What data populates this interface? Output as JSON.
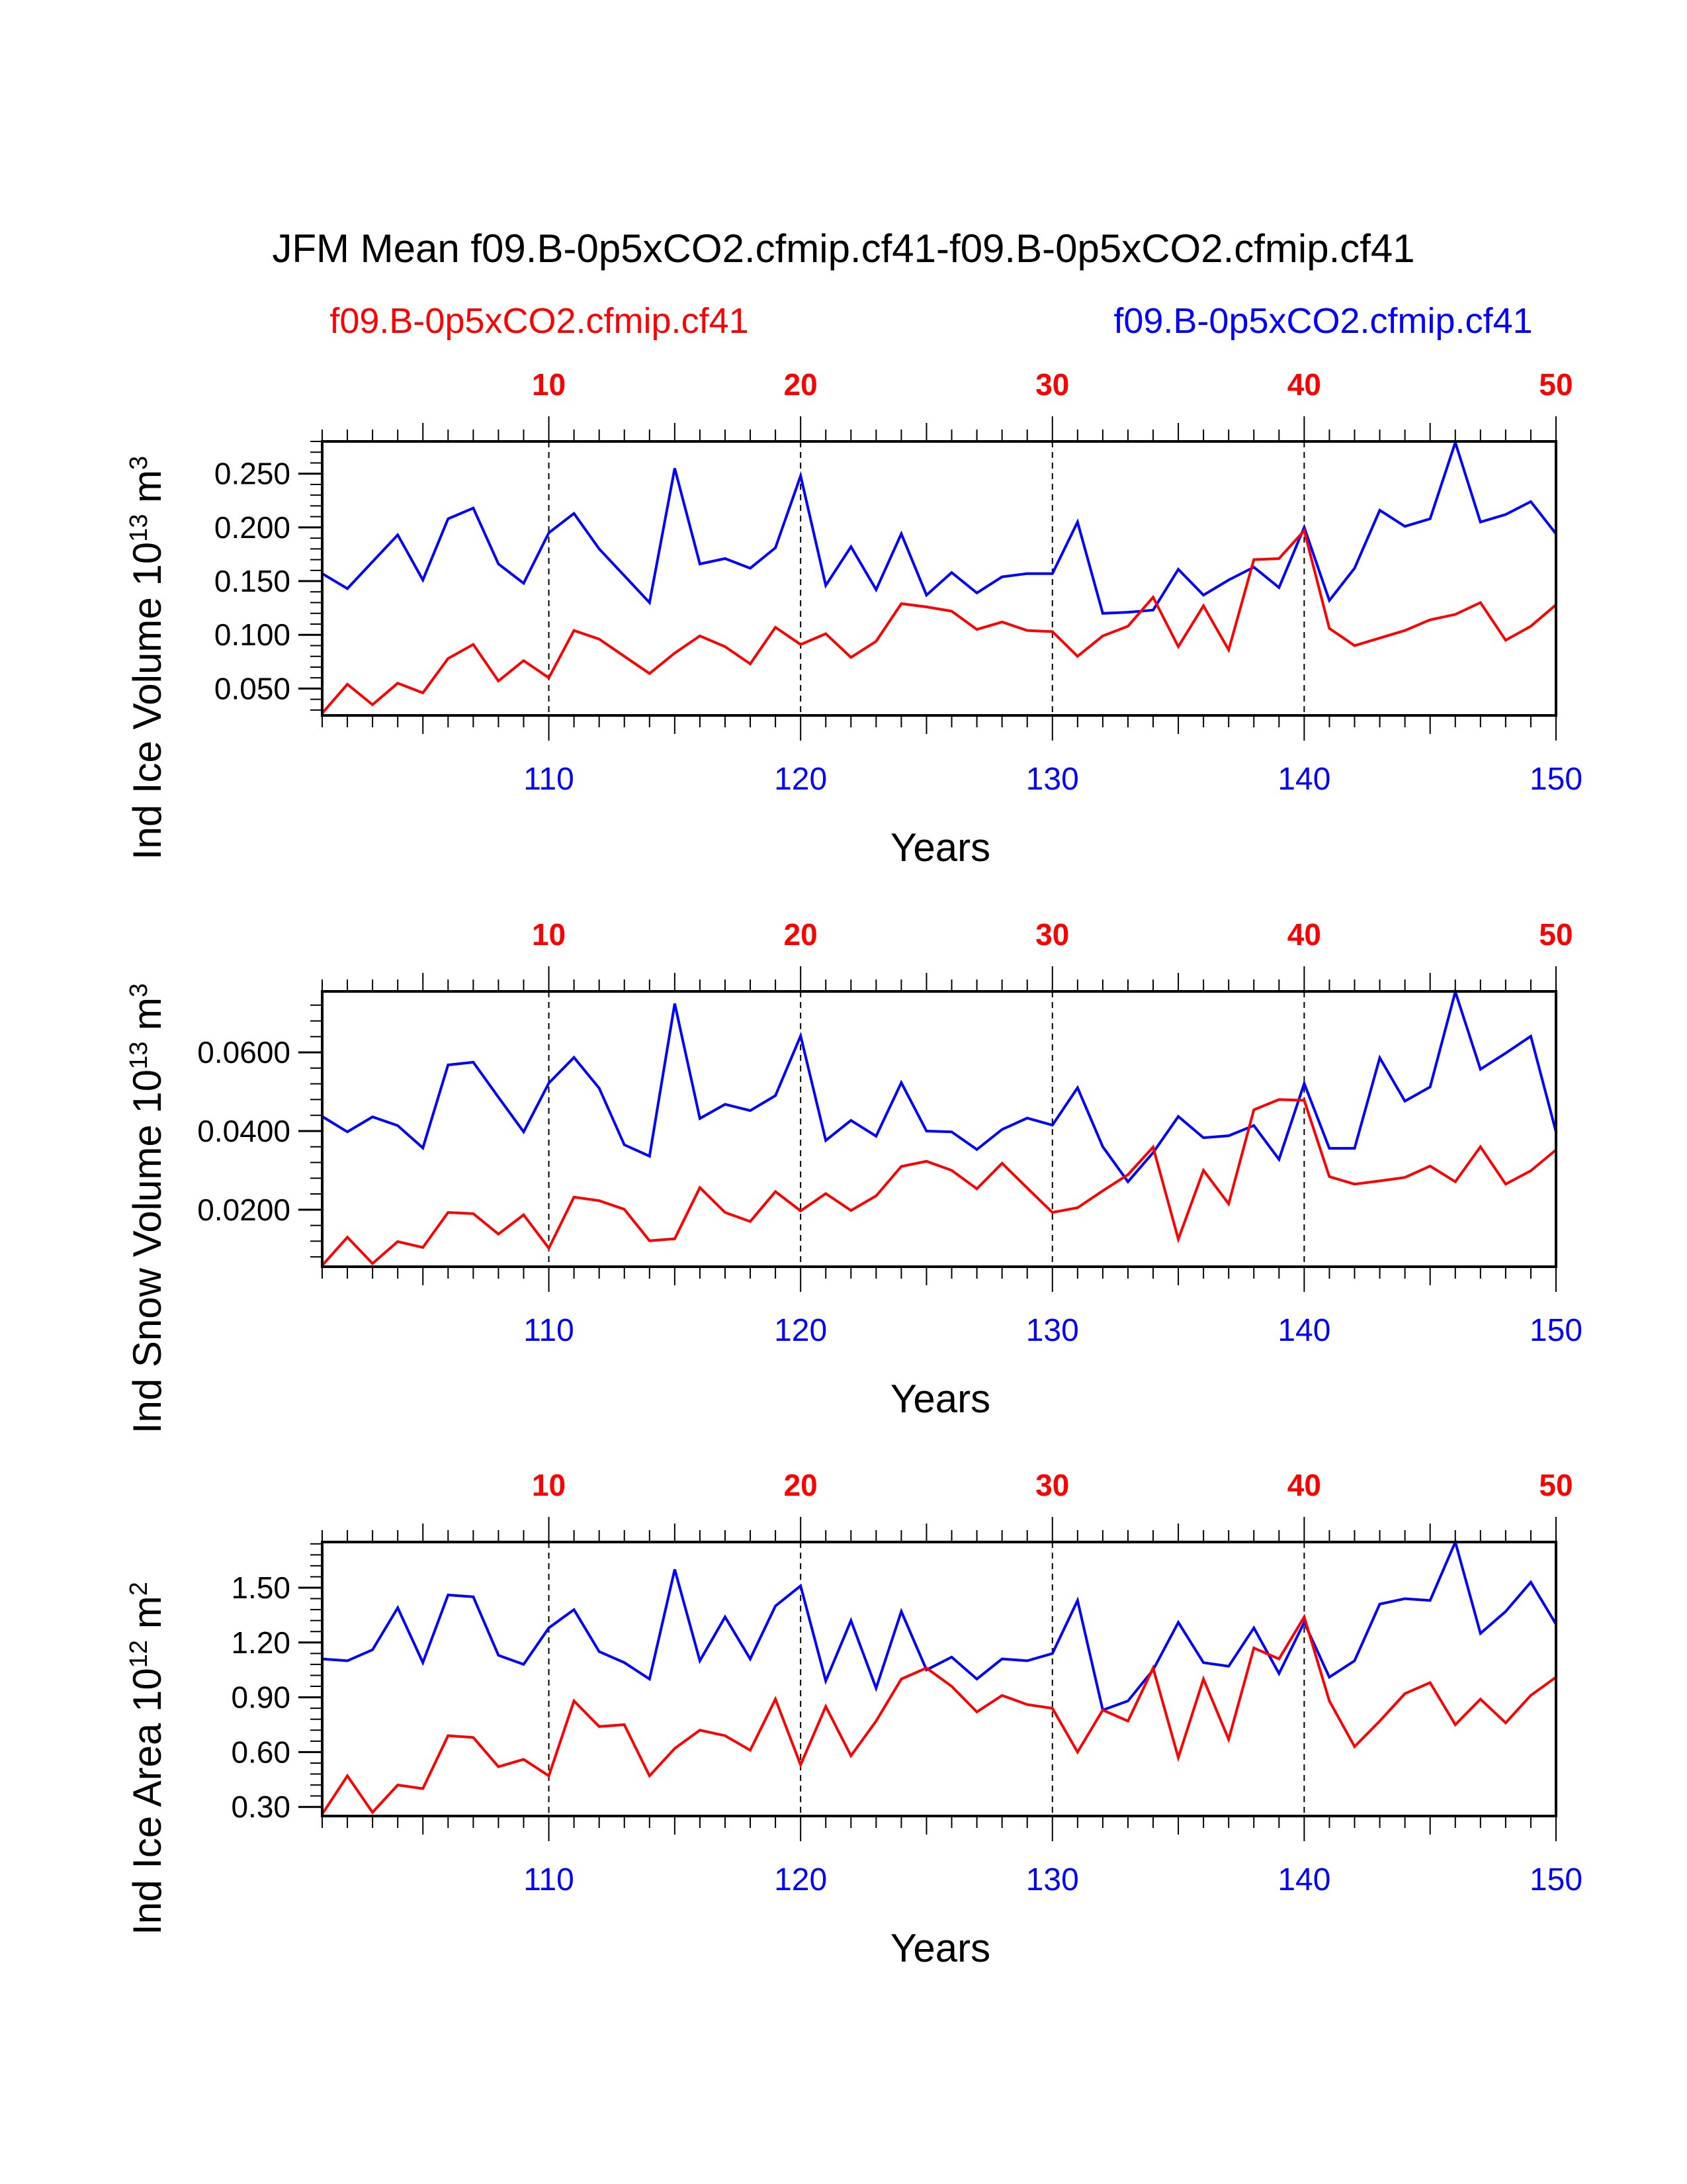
{
  "title": "JFM Mean f09.B-0p5xCO2.cfmip.cf41-f09.B-0p5xCO2.cfmip.cf41",
  "legend": {
    "left": {
      "label": "f09.B-0p5xCO2.cfmip.cf41",
      "color": "#ff0000"
    },
    "right": {
      "label": "f09.B-0p5xCO2.cfmip.cf41",
      "color": "#0000ff"
    }
  },
  "colors": {
    "red": "#ff0000",
    "blue": "#0000ff",
    "axis": "#000000"
  },
  "chart_data": [
    {
      "type": "line",
      "ylabel": "Ind Ice Volume 10",
      "ylabel_exp": "13",
      "ylabel_unit": " m",
      "ylabel_unit_exp": "3",
      "xlabel": "Years",
      "xlim": [
        101,
        150
      ],
      "ylim": [
        0.025,
        0.28
      ],
      "yticks": [
        0.05,
        0.1,
        0.15,
        0.2,
        0.25
      ],
      "ytick_labels": [
        "0.050",
        "0.100",
        "0.150",
        "0.200",
        "0.250"
      ],
      "yminor_step": 0.01,
      "x_bottom_ticks": [
        110,
        120,
        130,
        140,
        150
      ],
      "x_top_ticks": [
        10,
        20,
        30,
        40,
        50
      ],
      "series": [
        {
          "name": "f09.B-0p5xCO2.cfmip.cf41 (blue)",
          "color": "#0000ff",
          "x_start": 101,
          "values": [
            0.157,
            0.143,
            0.168,
            0.193,
            0.151,
            0.208,
            0.218,
            0.166,
            0.148,
            0.195,
            0.213,
            0.18,
            0.155,
            0.13,
            0.255,
            0.166,
            0.171,
            0.162,
            0.181,
            0.248,
            0.146,
            0.182,
            0.142,
            0.194,
            0.137,
            0.158,
            0.139,
            0.154,
            0.157,
            0.157,
            0.205,
            0.12,
            0.121,
            0.123,
            0.161,
            0.137,
            0.151,
            0.163,
            0.144,
            0.2,
            0.132,
            0.162,
            0.216,
            0.201,
            0.208,
            0.279,
            0.205,
            0.212,
            0.224,
            0.194
          ]
        },
        {
          "name": "f09.B-0p5xCO2.cfmip.cf41 (red)",
          "color": "#ff0000",
          "x_start": 101,
          "values": [
            0.027,
            0.054,
            0.035,
            0.055,
            0.046,
            0.078,
            0.091,
            0.057,
            0.076,
            0.06,
            0.104,
            0.096,
            0.08,
            0.064,
            0.083,
            0.099,
            0.089,
            0.073,
            0.107,
            0.091,
            0.101,
            0.079,
            0.094,
            0.129,
            0.126,
            0.122,
            0.105,
            0.112,
            0.104,
            0.103,
            0.08,
            0.099,
            0.108,
            0.135,
            0.089,
            0.127,
            0.086,
            0.17,
            0.171,
            0.197,
            0.106,
            0.09,
            0.097,
            0.104,
            0.114,
            0.119,
            0.13,
            0.095,
            0.108,
            0.128
          ]
        }
      ]
    },
    {
      "type": "line",
      "ylabel": "Ind Snow Volume 10",
      "ylabel_exp": "13",
      "ylabel_unit": " m",
      "ylabel_unit_exp": "3",
      "xlabel": "Years",
      "xlim": [
        101,
        150
      ],
      "ylim": [
        0.0055,
        0.0755
      ],
      "yticks": [
        0.02,
        0.04,
        0.06
      ],
      "ytick_labels": [
        "0.0200",
        "0.0400",
        "0.0600"
      ],
      "yminor_step": 0.004,
      "x_bottom_ticks": [
        110,
        120,
        130,
        140,
        150
      ],
      "x_top_ticks": [
        10,
        20,
        30,
        40,
        50
      ],
      "series": [
        {
          "name": "f09.B-0p5xCO2.cfmip.cf41 (blue)",
          "color": "#0000ff",
          "x_start": 101,
          "values": [
            0.0437,
            0.0398,
            0.0436,
            0.0414,
            0.0357,
            0.0568,
            0.0575,
            0.0486,
            0.0398,
            0.0522,
            0.0587,
            0.0509,
            0.0365,
            0.0336,
            0.0724,
            0.0432,
            0.0468,
            0.0452,
            0.049,
            0.0642,
            0.0376,
            0.0427,
            0.0387,
            0.0523,
            0.04,
            0.0398,
            0.0353,
            0.0404,
            0.0433,
            0.0415,
            0.051,
            0.036,
            0.0271,
            0.0345,
            0.0437,
            0.0383,
            0.0388,
            0.0414,
            0.0328,
            0.0521,
            0.0356,
            0.0356,
            0.0586,
            0.0476,
            0.0512,
            0.0754,
            0.0557,
            0.0598,
            0.0641,
            0.0398
          ]
        },
        {
          "name": "f09.B-0p5xCO2.cfmip.cf41 (red)",
          "color": "#ff0000",
          "x_start": 101,
          "values": [
            0.0058,
            0.013,
            0.0063,
            0.0119,
            0.0104,
            0.0193,
            0.019,
            0.0138,
            0.0187,
            0.0102,
            0.0232,
            0.0223,
            0.0201,
            0.0121,
            0.0126,
            0.0256,
            0.0193,
            0.017,
            0.0246,
            0.0197,
            0.0241,
            0.0198,
            0.0235,
            0.031,
            0.0323,
            0.03,
            0.0253,
            0.0318,
            0.0255,
            0.0193,
            0.0205,
            0.0248,
            0.0289,
            0.0359,
            0.0125,
            0.03,
            0.0215,
            0.0454,
            0.048,
            0.0478,
            0.0284,
            0.0265,
            0.0273,
            0.0282,
            0.0311,
            0.0271,
            0.036,
            0.0265,
            0.0299,
            0.0352
          ]
        }
      ]
    },
    {
      "type": "line",
      "ylabel": "Ind Ice Area 10",
      "ylabel_exp": "12",
      "ylabel_unit": " m",
      "ylabel_unit_exp": "2",
      "xlabel": "Years",
      "xlim": [
        101,
        150
      ],
      "ylim": [
        0.25,
        1.75
      ],
      "yticks": [
        0.3,
        0.6,
        0.9,
        1.2,
        1.5
      ],
      "ytick_labels": [
        "0.30",
        "0.60",
        "0.90",
        "1.20",
        "1.50"
      ],
      "yminor_step": 0.06,
      "x_bottom_ticks": [
        110,
        120,
        130,
        140,
        150
      ],
      "x_top_ticks": [
        10,
        20,
        30,
        40,
        50
      ],
      "series": [
        {
          "name": "f09.B-0p5xCO2.cfmip.cf41 (blue)",
          "color": "#0000ff",
          "x_start": 101,
          "values": [
            1.11,
            1.1,
            1.16,
            1.39,
            1.09,
            1.46,
            1.45,
            1.13,
            1.08,
            1.28,
            1.38,
            1.15,
            1.09,
            1.0,
            1.6,
            1.1,
            1.34,
            1.11,
            1.4,
            1.51,
            0.99,
            1.32,
            0.95,
            1.37,
            1.05,
            1.12,
            1.0,
            1.11,
            1.1,
            1.14,
            1.43,
            0.83,
            0.88,
            1.05,
            1.31,
            1.09,
            1.07,
            1.28,
            1.03,
            1.31,
            1.01,
            1.1,
            1.41,
            1.44,
            1.43,
            1.75,
            1.25,
            1.37,
            1.53,
            1.3
          ]
        },
        {
          "name": "f09.B-0p5xCO2.cfmip.cf41 (red)",
          "color": "#ff0000",
          "x_start": 101,
          "values": [
            0.26,
            0.47,
            0.27,
            0.42,
            0.4,
            0.69,
            0.68,
            0.52,
            0.56,
            0.47,
            0.88,
            0.74,
            0.75,
            0.47,
            0.62,
            0.72,
            0.69,
            0.61,
            0.89,
            0.53,
            0.85,
            0.58,
            0.77,
            1.0,
            1.06,
            0.96,
            0.82,
            0.91,
            0.86,
            0.84,
            0.6,
            0.83,
            0.77,
            1.06,
            0.57,
            1.0,
            0.67,
            1.17,
            1.11,
            1.34,
            0.88,
            0.63,
            0.77,
            0.92,
            0.98,
            0.75,
            0.89,
            0.76,
            0.91,
            1.01
          ]
        }
      ]
    }
  ]
}
